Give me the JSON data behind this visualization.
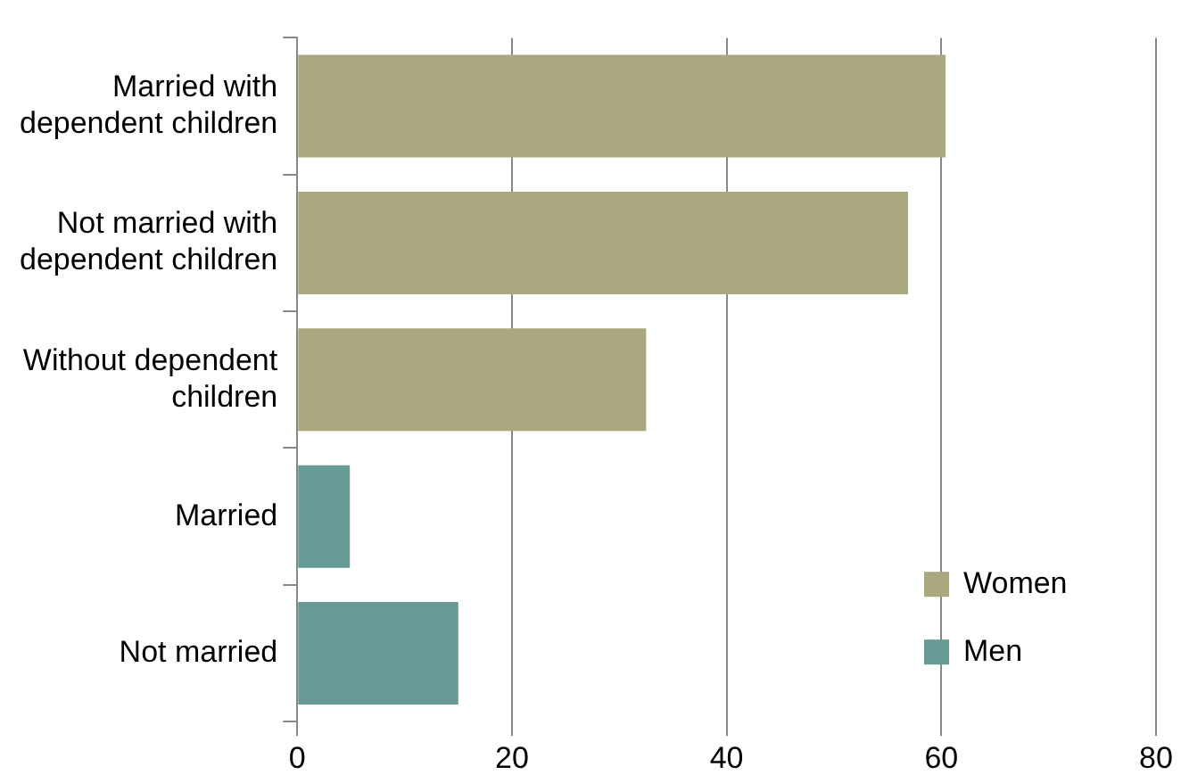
{
  "chart_data": {
    "type": "bar",
    "orientation": "horizontal",
    "stacked": true,
    "categories": [
      "Married with\ndependent children",
      "Not married with\ndependent children",
      "Without dependent\nchildren",
      "Married",
      "Not married"
    ],
    "series": [
      {
        "name": "Women",
        "color": "#a9a87e",
        "values": [
          60.4,
          56.9,
          32.5,
          null,
          null
        ]
      },
      {
        "name": "Men",
        "color": "#679a94",
        "values": [
          null,
          null,
          null,
          4.9,
          15
        ]
      }
    ],
    "xlim": [
      0,
      80
    ],
    "xticks": [
      0,
      20,
      40,
      60,
      80
    ],
    "grid": "x",
    "legend": "bottom right"
  }
}
